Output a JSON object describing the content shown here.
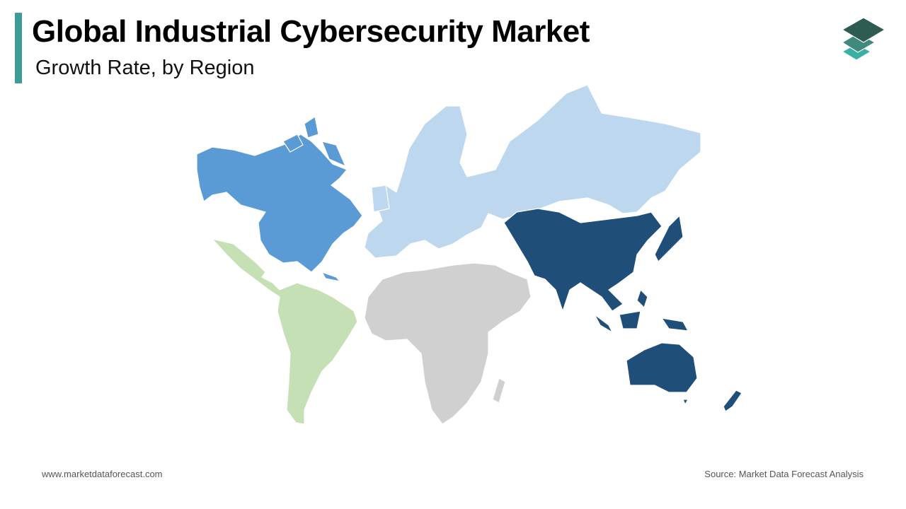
{
  "header": {
    "title": "Global Industrial Cybersecurity Market",
    "subtitle": "Growth Rate, by Region"
  },
  "footer": {
    "website": "www.marketdataforecast.com",
    "source": "Source: Market Data Forecast Analysis"
  }
}
